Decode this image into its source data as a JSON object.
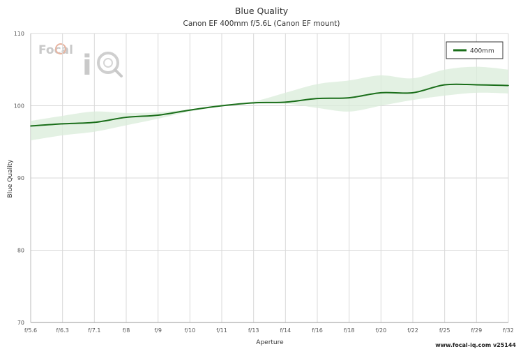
{
  "chart_data": {
    "type": "line",
    "title": "Blue Quality",
    "subtitle": "Canon EF 400mm f/5.6L (Canon EF mount)",
    "xlabel": "Aperture",
    "ylabel": "Blue Quality",
    "categories": [
      "f/5.6",
      "f/6.3",
      "f/7.1",
      "f/8",
      "f/9",
      "f/10",
      "f/11",
      "f/13",
      "f/14",
      "f/16",
      "f/18",
      "f/20",
      "f/22",
      "f/25",
      "f/29",
      "f/32"
    ],
    "ylim": [
      70,
      110
    ],
    "yticks": [
      70,
      80,
      90,
      100,
      110
    ],
    "grid": true,
    "legend_position": "top-right",
    "series": [
      {
        "name": "400mm",
        "color": "#1a6e1a",
        "band_color": "#d9ecd9",
        "values": [
          97.2,
          97.5,
          97.7,
          98.4,
          98.7,
          99.4,
          100.0,
          100.4,
          100.5,
          101.0,
          101.1,
          101.8,
          101.8,
          102.9,
          102.9,
          102.8
        ],
        "upper": [
          97.9,
          98.6,
          99.2,
          99.0,
          99.1,
          99.5,
          100.1,
          100.6,
          101.8,
          103.0,
          103.5,
          104.2,
          103.8,
          105.0,
          105.4,
          105.0
        ],
        "lower": [
          95.2,
          95.9,
          96.4,
          97.3,
          98.2,
          99.2,
          99.9,
          100.3,
          100.3,
          99.7,
          99.2,
          100.0,
          100.8,
          101.4,
          101.8,
          101.7
        ]
      }
    ]
  },
  "logo": {
    "text_focal": "Focal",
    "text_iq": "iQ"
  },
  "footer": "www.focal-iq.com  v25144"
}
